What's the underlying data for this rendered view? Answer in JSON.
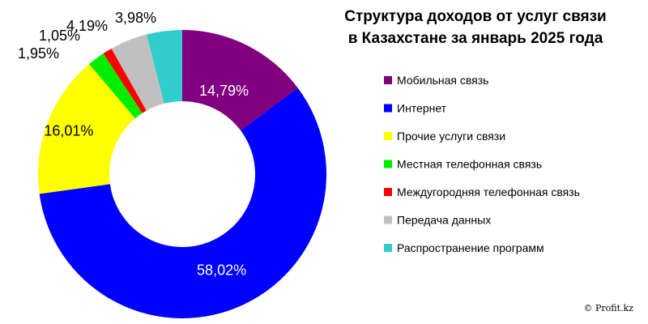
{
  "chart_data": {
    "type": "pie",
    "variant": "donut",
    "title": [
      "Структура доходов от услуг связи",
      "в Казахстане за январь 2025 года"
    ],
    "categories": [
      "Мобильная связь",
      "Интернет",
      "Прочие услуги связи",
      "Местная телефонная связь",
      "Междугородняя телефонная связь",
      "Передача данных",
      "Распространение программ"
    ],
    "values": [
      14.79,
      58.02,
      16.01,
      1.95,
      1.05,
      4.19,
      3.98
    ],
    "data_labels": [
      "14,79%",
      "58,02%",
      "16,01%",
      "1,95%",
      "1,05%",
      "4,19%",
      "3,98%"
    ],
    "colors": [
      "#800080",
      "#0000ff",
      "#ffff00",
      "#00ee00",
      "#ff0000",
      "#c0c0c0",
      "#33cccc"
    ],
    "legend": "right",
    "start_angle": "12 o'clock",
    "direction": "clockwise"
  },
  "watermark": "© Profit.kz"
}
